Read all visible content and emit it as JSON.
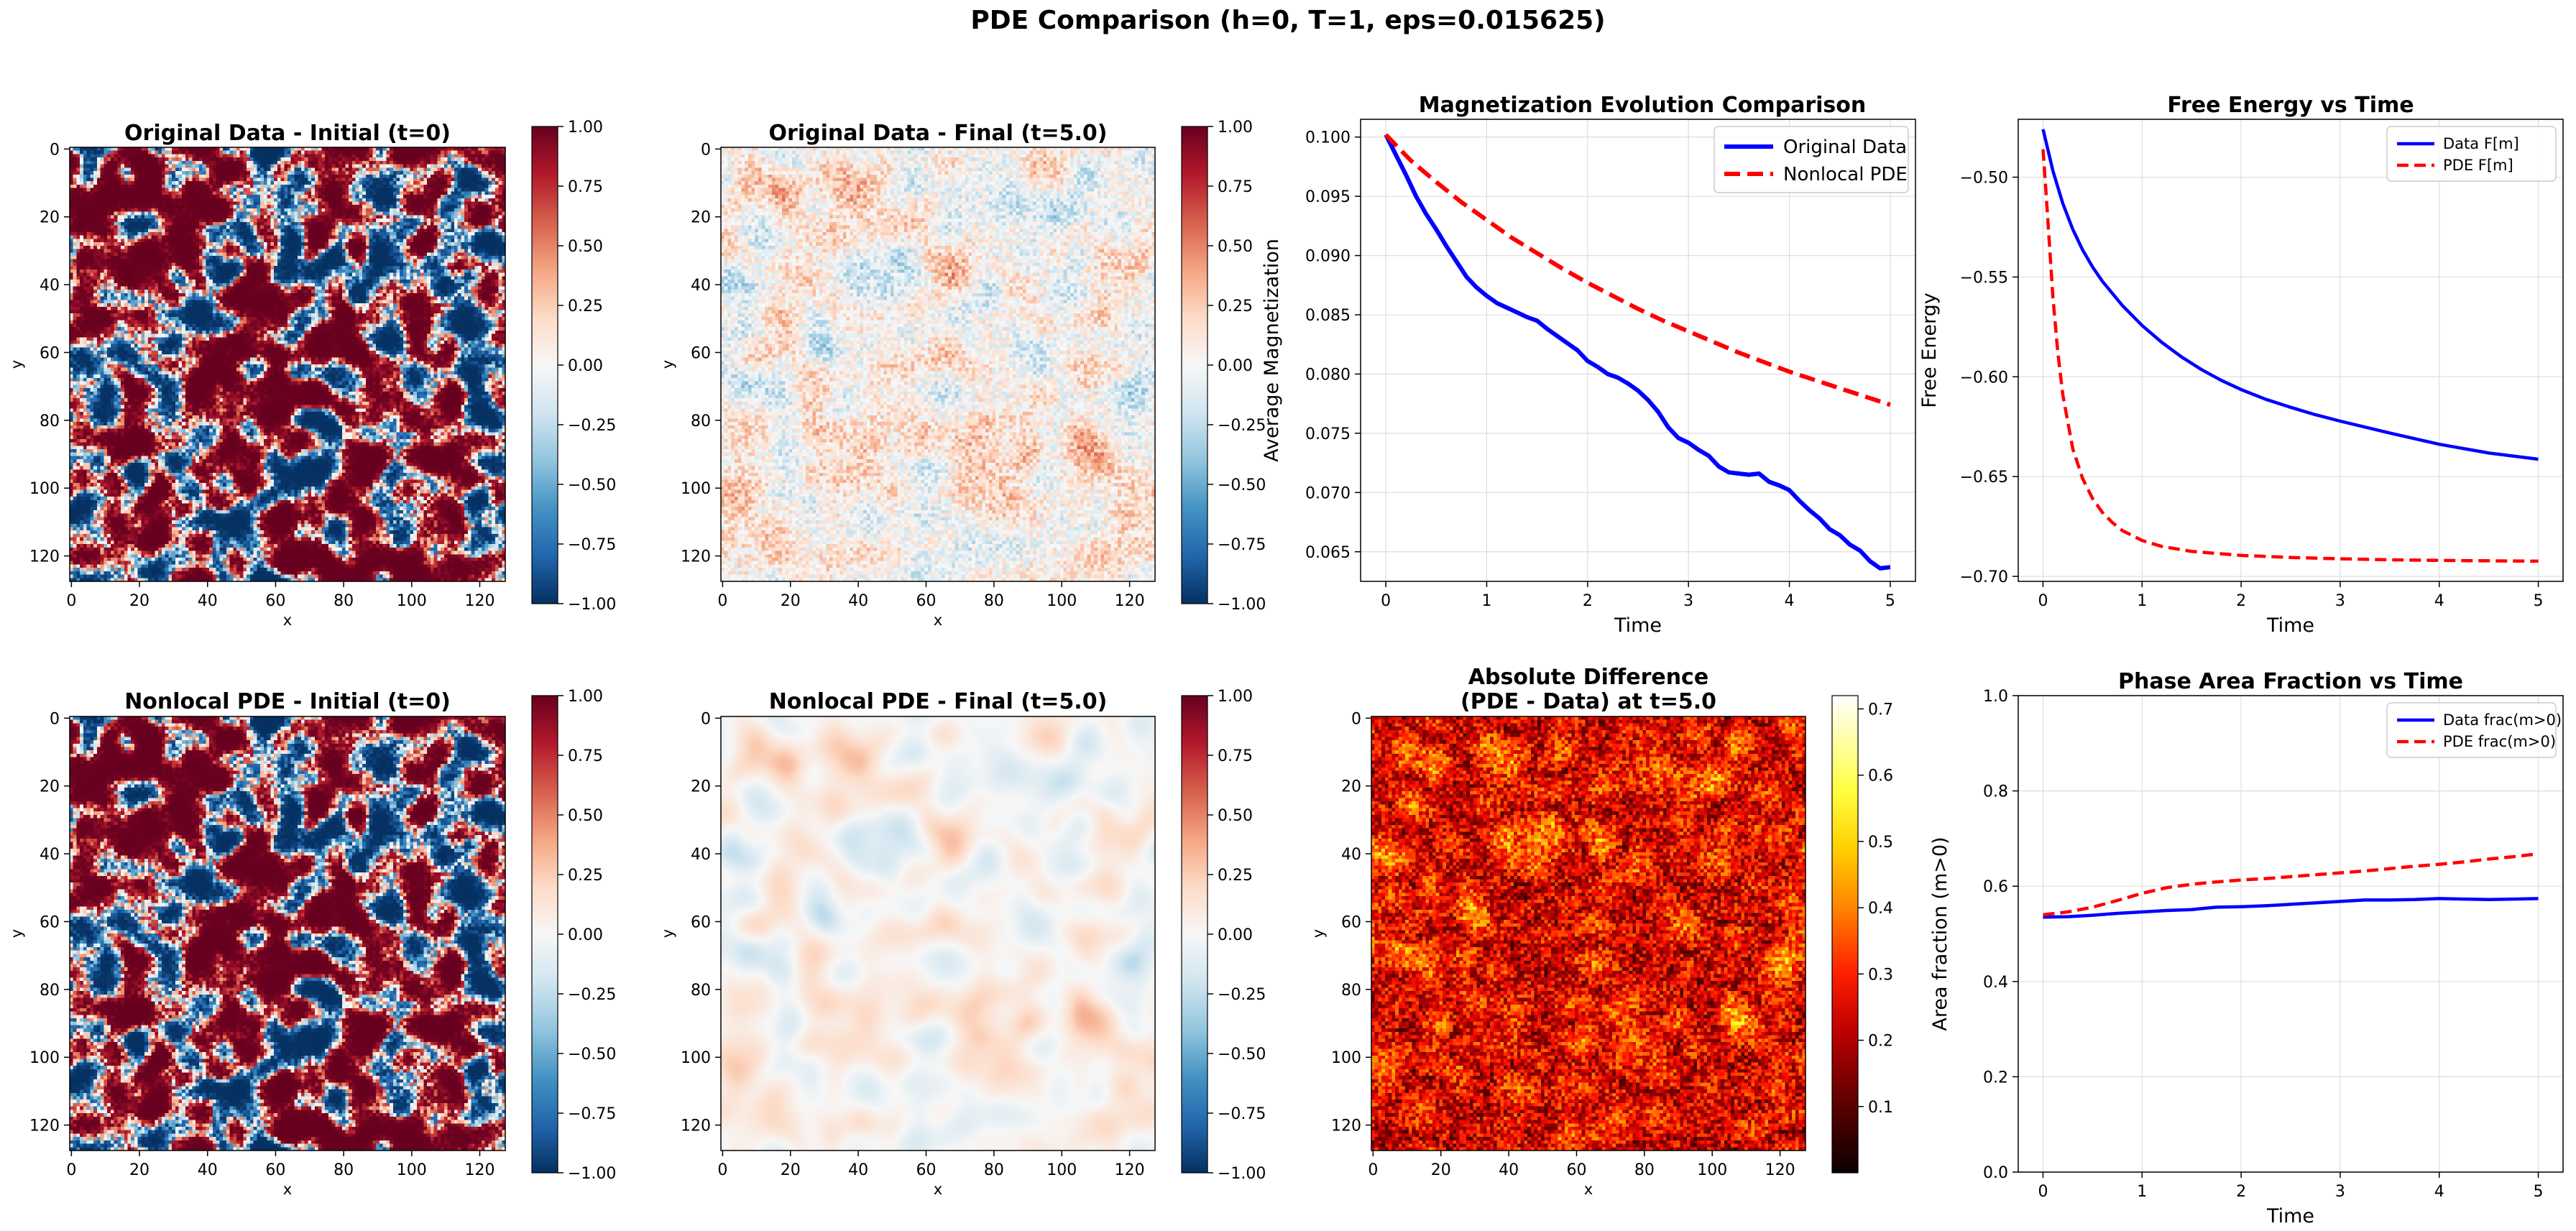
{
  "figure": {
    "title": "PDE Comparison (h=0, T=1, eps=0.015625)"
  },
  "colors": {
    "data_line": "#0000ff",
    "pde_line": "#ff0000",
    "diverging_cmap": [
      "#053061",
      "#2166ac",
      "#4393c3",
      "#92c5de",
      "#d1e5f0",
      "#f7f7f7",
      "#fddbc7",
      "#f4a582",
      "#d6604d",
      "#b2182b",
      "#67001f"
    ],
    "hot_cmap": [
      "#0b0000",
      "#600000",
      "#b00000",
      "#ff1000",
      "#ff6000",
      "#ffb000",
      "#ffff20",
      "#ffffb0",
      "#ffffff"
    ],
    "grid": "#dddddd"
  },
  "panels": {
    "orig_initial": {
      "title": "Original Data - Initial (t=0)",
      "xlabel": "x",
      "ylabel": "y",
      "xticks": [
        "0",
        "20",
        "40",
        "60",
        "80",
        "100",
        "120"
      ],
      "yticks": [
        "0",
        "20",
        "40",
        "60",
        "80",
        "100",
        "120"
      ],
      "colorbar_ticks": [
        "1.00",
        "0.75",
        "0.50",
        "0.25",
        "0.00",
        "−0.25",
        "−0.50",
        "−0.75",
        "−1.00"
      ]
    },
    "orig_final": {
      "title": "Original Data - Final (t=5.0)",
      "xlabel": "x",
      "ylabel": "y",
      "xticks": [
        "0",
        "20",
        "40",
        "60",
        "80",
        "100",
        "120"
      ],
      "yticks": [
        "0",
        "20",
        "40",
        "60",
        "80",
        "100",
        "120"
      ],
      "colorbar_ticks": [
        "1.00",
        "0.75",
        "0.50",
        "0.25",
        "0.00",
        "−0.25",
        "−0.50",
        "−0.75",
        "−1.00"
      ]
    },
    "pde_initial": {
      "title": "Nonlocal PDE - Initial (t=0)",
      "xlabel": "x",
      "ylabel": "y",
      "xticks": [
        "0",
        "20",
        "40",
        "60",
        "80",
        "100",
        "120"
      ],
      "yticks": [
        "0",
        "20",
        "40",
        "60",
        "80",
        "100",
        "120"
      ],
      "colorbar_ticks": [
        "1.00",
        "0.75",
        "0.50",
        "0.25",
        "0.00",
        "−0.25",
        "−0.50",
        "−0.75",
        "−1.00"
      ]
    },
    "pde_final": {
      "title": "Nonlocal PDE - Final (t=5.0)",
      "xlabel": "x",
      "ylabel": "y",
      "xticks": [
        "0",
        "20",
        "40",
        "60",
        "80",
        "100",
        "120"
      ],
      "yticks": [
        "0",
        "20",
        "40",
        "60",
        "80",
        "100",
        "120"
      ],
      "colorbar_ticks": [
        "1.00",
        "0.75",
        "0.50",
        "0.25",
        "0.00",
        "−0.25",
        "−0.50",
        "−0.75",
        "−1.00"
      ]
    },
    "abs_diff": {
      "title_line1": "Absolute Difference",
      "title_line2": "(PDE - Data) at t=5.0",
      "xlabel": "x",
      "ylabel": "y",
      "xticks": [
        "0",
        "20",
        "40",
        "60",
        "80",
        "100",
        "120"
      ],
      "yticks": [
        "0",
        "20",
        "40",
        "60",
        "80",
        "100",
        "120"
      ],
      "colorbar_ticks": [
        "0.7",
        "0.6",
        "0.5",
        "0.4",
        "0.3",
        "0.2",
        "0.1"
      ]
    }
  },
  "chart_data": [
    {
      "type": "heatmap",
      "title": "Original Data - Initial (t=0)",
      "xlabel": "x",
      "ylabel": "y",
      "xlim": [
        0,
        127
      ],
      "ylim": [
        127,
        0
      ],
      "colorbar_range": [
        -1.0,
        1.0
      ],
      "colormap": "RdBu_r",
      "pattern": "sharp two-phase domains (near +1 red / -1 blue)"
    },
    {
      "type": "heatmap",
      "title": "Original Data - Final (t=5.0)",
      "xlabel": "x",
      "ylabel": "y",
      "xlim": [
        0,
        127
      ],
      "ylim": [
        127,
        0
      ],
      "colorbar_range": [
        -1.0,
        1.0
      ],
      "colormap": "RdBu_r",
      "pattern": "noisy low-amplitude field (about -0.4 to +0.5)"
    },
    {
      "type": "line",
      "title": "Magnetization Evolution Comparison",
      "xlabel": "Time",
      "ylabel": "Average Magnetization",
      "xlim": [
        -0.25,
        5.25
      ],
      "ylim": [
        0.0625,
        0.1015
      ],
      "xticks": [
        "0",
        "1",
        "2",
        "3",
        "4",
        "5"
      ],
      "yticks": [
        "0.100",
        "0.095",
        "0.090",
        "0.085",
        "0.080",
        "0.075",
        "0.070",
        "0.065"
      ],
      "grid": true,
      "legend_loc": "upper right",
      "series": [
        {
          "name": "Original Data",
          "style": "solid",
          "x": [
            0,
            0.1,
            0.2,
            0.3,
            0.4,
            0.5,
            0.6,
            0.7,
            0.8,
            0.9,
            1.0,
            1.1,
            1.2,
            1.3,
            1.4,
            1.5,
            1.6,
            1.7,
            1.8,
            1.9,
            2.0,
            2.1,
            2.2,
            2.3,
            2.4,
            2.5,
            2.6,
            2.7,
            2.8,
            2.9,
            3.0,
            3.1,
            3.2,
            3.3,
            3.4,
            3.5,
            3.6,
            3.7,
            3.8,
            3.9,
            4.0,
            4.1,
            4.2,
            4.3,
            4.4,
            4.5,
            4.6,
            4.7,
            4.8,
            4.9,
            5.0
          ],
          "y": [
            0.1002,
            0.0985,
            0.0968,
            0.095,
            0.0935,
            0.0922,
            0.0908,
            0.0895,
            0.0882,
            0.0873,
            0.0866,
            0.086,
            0.0856,
            0.0852,
            0.0848,
            0.0845,
            0.0838,
            0.0832,
            0.0826,
            0.082,
            0.0811,
            0.0806,
            0.08,
            0.0797,
            0.0792,
            0.0786,
            0.0778,
            0.0768,
            0.0755,
            0.0746,
            0.0742,
            0.0736,
            0.0731,
            0.0722,
            0.0717,
            0.0716,
            0.0715,
            0.0716,
            0.0709,
            0.0706,
            0.0702,
            0.0693,
            0.0685,
            0.0678,
            0.0669,
            0.0664,
            0.0656,
            0.0651,
            0.0642,
            0.0636,
            0.0637
          ]
        },
        {
          "name": "Nonlocal PDE",
          "style": "dashed",
          "x": [
            0,
            0.25,
            0.5,
            0.75,
            1.0,
            1.25,
            1.5,
            1.75,
            2.0,
            2.25,
            2.5,
            2.75,
            3.0,
            3.25,
            3.5,
            3.75,
            4.0,
            4.25,
            4.5,
            4.75,
            5.0
          ],
          "y": [
            0.1002,
            0.098,
            0.0962,
            0.0945,
            0.093,
            0.0915,
            0.0902,
            0.0889,
            0.0877,
            0.0866,
            0.0855,
            0.0845,
            0.0836,
            0.0827,
            0.0818,
            0.081,
            0.0802,
            0.0795,
            0.0788,
            0.0781,
            0.0774
          ]
        }
      ]
    },
    {
      "type": "line",
      "title": "Free Energy vs Time",
      "xlabel": "Time",
      "ylabel": "Free Energy",
      "xlim": [
        -0.25,
        5.25
      ],
      "ylim": [
        -0.7025,
        -0.471
      ],
      "xticks": [
        "0",
        "1",
        "2",
        "3",
        "4",
        "5"
      ],
      "yticks": [
        "−0.50",
        "−0.55",
        "−0.60",
        "−0.65",
        "−0.70"
      ],
      "grid": true,
      "legend_loc": "upper right",
      "series": [
        {
          "name": "Data F[m]",
          "style": "solid",
          "x": [
            0,
            0.1,
            0.2,
            0.3,
            0.4,
            0.5,
            0.6,
            0.8,
            1.0,
            1.2,
            1.4,
            1.6,
            1.8,
            2.0,
            2.25,
            2.5,
            2.75,
            3.0,
            3.5,
            4.0,
            4.5,
            5.0
          ],
          "y": [
            -0.476,
            -0.4968,
            -0.5132,
            -0.5261,
            -0.5365,
            -0.545,
            -0.5522,
            -0.5642,
            -0.5743,
            -0.5828,
            -0.5901,
            -0.5964,
            -0.6018,
            -0.6064,
            -0.6113,
            -0.6153,
            -0.619,
            -0.6222,
            -0.6282,
            -0.6338,
            -0.6382,
            -0.6413
          ]
        },
        {
          "name": "PDE F[m]",
          "style": "dashed",
          "x": [
            0,
            0.05,
            0.1,
            0.15,
            0.2,
            0.3,
            0.4,
            0.5,
            0.6,
            0.7,
            0.8,
            1.0,
            1.2,
            1.5,
            2.0,
            2.5,
            3.0,
            3.5,
            4.0,
            4.5,
            5.0
          ],
          "y": [
            -0.486,
            -0.522,
            -0.56,
            -0.588,
            -0.609,
            -0.636,
            -0.651,
            -0.661,
            -0.668,
            -0.673,
            -0.677,
            -0.682,
            -0.685,
            -0.6875,
            -0.6895,
            -0.6905,
            -0.6912,
            -0.6917,
            -0.692,
            -0.6922,
            -0.6924
          ]
        }
      ]
    },
    {
      "type": "heatmap",
      "title": "Nonlocal PDE - Initial (t=0)",
      "xlabel": "x",
      "ylabel": "y",
      "xlim": [
        0,
        127
      ],
      "ylim": [
        127,
        0
      ],
      "colorbar_range": [
        -1.0,
        1.0
      ],
      "colormap": "RdBu_r",
      "pattern": "sharp two-phase domains (same as original initial)"
    },
    {
      "type": "heatmap",
      "title": "Nonlocal PDE - Final (t=5.0)",
      "xlabel": "x",
      "ylabel": "y",
      "xlim": [
        0,
        127
      ],
      "ylim": [
        127,
        0
      ],
      "colorbar_range": [
        -1.0,
        1.0
      ],
      "colormap": "RdBu_r",
      "pattern": "smooth low-amplitude field (about -0.25 to +0.35)"
    },
    {
      "type": "heatmap",
      "title": "Absolute Difference (PDE - Data) at t=5.0",
      "xlabel": "x",
      "ylabel": "y",
      "xlim": [
        0,
        127
      ],
      "ylim": [
        127,
        0
      ],
      "colorbar_range": [
        0.0,
        0.72
      ],
      "colormap": "hot",
      "pattern": "noisy field mostly 0.1-0.3 with bright patches up to about 0.7"
    },
    {
      "type": "line",
      "title": "Phase Area Fraction vs Time",
      "xlabel": "Time",
      "ylabel": "Area fraction (m>0)",
      "xlim": [
        -0.25,
        5.25
      ],
      "ylim": [
        0.0,
        1.0
      ],
      "xticks": [
        "0",
        "1",
        "2",
        "3",
        "4",
        "5"
      ],
      "yticks": [
        "1.0",
        "0.8",
        "0.6",
        "0.4",
        "0.2",
        "0.0"
      ],
      "grid": true,
      "legend_loc": "upper right",
      "series": [
        {
          "name": "Data frac(m>0)",
          "style": "solid",
          "x": [
            0,
            0.25,
            0.5,
            0.75,
            1.0,
            1.25,
            1.5,
            1.75,
            2.0,
            2.25,
            2.5,
            2.75,
            3.0,
            3.25,
            3.5,
            3.75,
            4.0,
            4.25,
            4.5,
            4.75,
            5.0
          ],
          "y": [
            0.535,
            0.536,
            0.539,
            0.543,
            0.546,
            0.549,
            0.551,
            0.556,
            0.557,
            0.559,
            0.562,
            0.565,
            0.568,
            0.571,
            0.571,
            0.572,
            0.574,
            0.573,
            0.572,
            0.573,
            0.574
          ]
        },
        {
          "name": "PDE frac(m>0)",
          "style": "dashed",
          "x": [
            0,
            0.25,
            0.5,
            0.75,
            1.0,
            1.25,
            1.5,
            1.75,
            2.0,
            2.25,
            2.5,
            2.75,
            3.0,
            3.25,
            3.5,
            3.75,
            4.0,
            4.25,
            4.5,
            4.75,
            5.0
          ],
          "y": [
            0.54,
            0.546,
            0.556,
            0.57,
            0.585,
            0.597,
            0.604,
            0.609,
            0.613,
            0.616,
            0.62,
            0.624,
            0.628,
            0.632,
            0.637,
            0.642,
            0.646,
            0.651,
            0.657,
            0.662,
            0.668
          ]
        }
      ]
    }
  ]
}
